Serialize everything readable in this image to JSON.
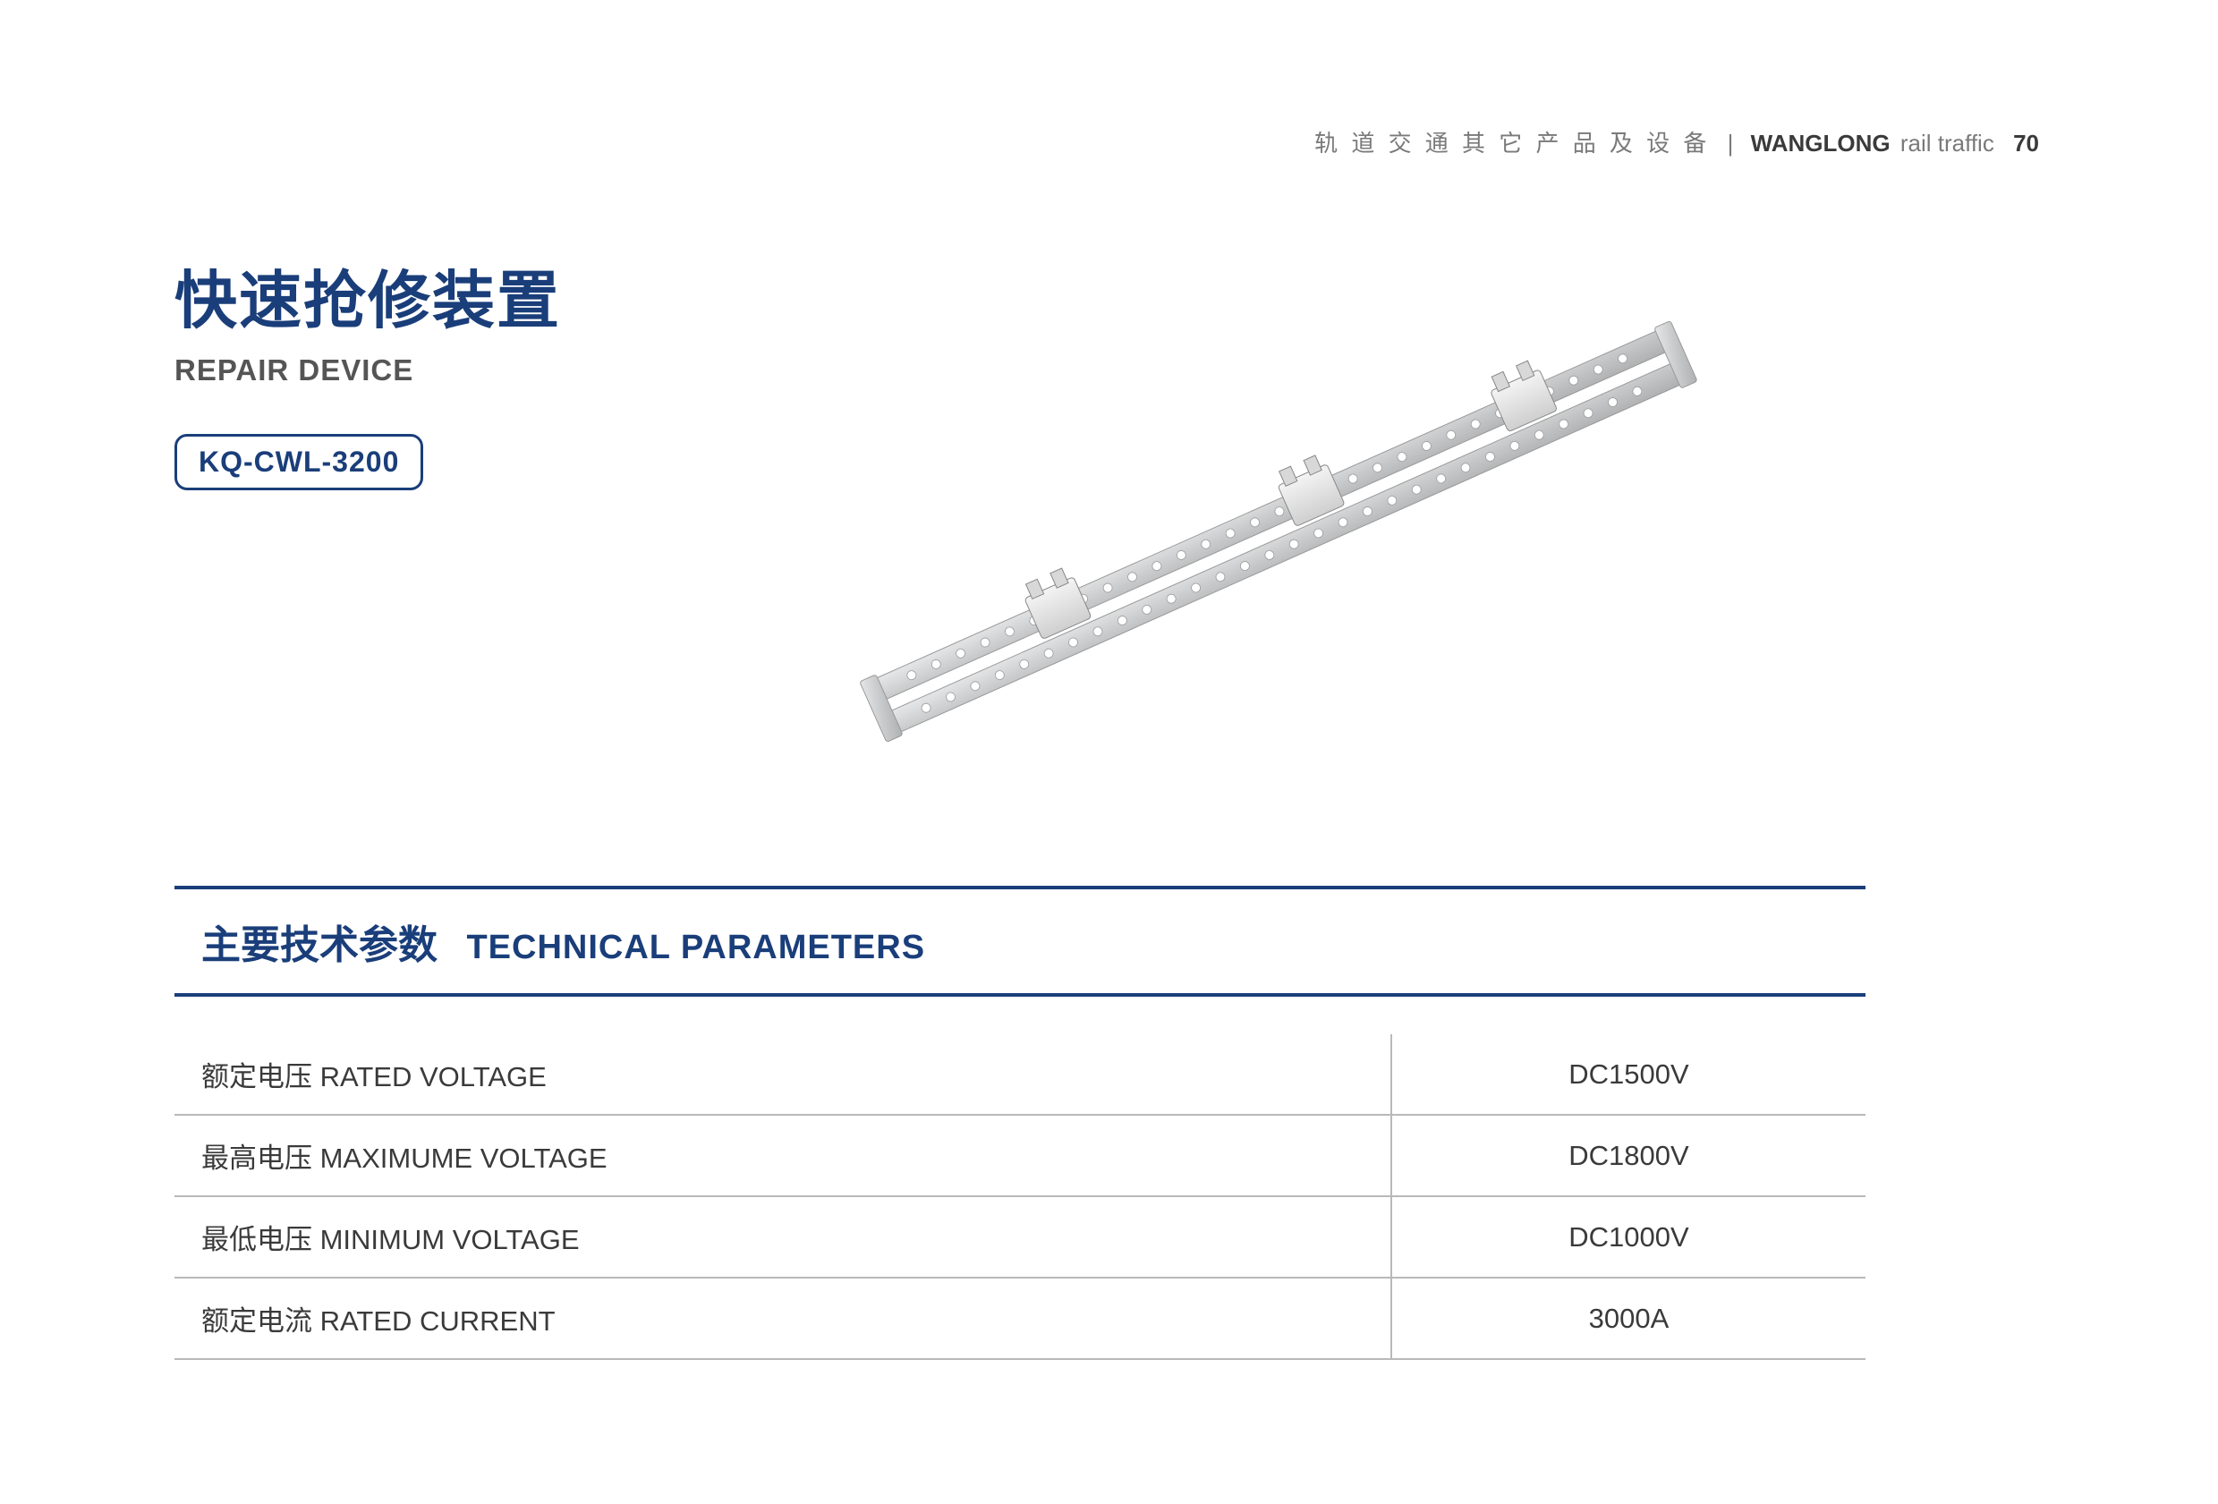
{
  "header": {
    "category_cn": "轨 道 交 通 其 它 产 品 及 设 备",
    "brand_bold": "WANGLONG",
    "brand_light": "rail traffic",
    "page_number": "70"
  },
  "title": {
    "cn": "快速抢修装置",
    "en": "REPAIR DEVICE",
    "model": "KQ-CWL-3200"
  },
  "colors": {
    "brand_blue": "#1a3e7a",
    "text_gray": "#3a3a3a",
    "light_gray": "#7a7a7a",
    "border_gray": "#b9b9b9",
    "background": "#ffffff"
  },
  "product_image": {
    "description": "metallic rail repair device with perforated parallel bars and clamp blocks",
    "bar_color": "#c8cacb",
    "clamp_color": "#e8e8e8",
    "hole_color": "#ffffff"
  },
  "params": {
    "heading_cn": "主要技术参数",
    "heading_en": "TECHNICAL PARAMETERS",
    "rows": [
      {
        "label": "额定电压 RATED VOLTAGE",
        "value": "DC1500V"
      },
      {
        "label": "最高电压 MAXIMUME VOLTAGE",
        "value": "DC1800V"
      },
      {
        "label": "最低电压 MINIMUM VOLTAGE",
        "value": "DC1000V"
      },
      {
        "label": "额定电流 RATED CURRENT",
        "value": "3000A"
      }
    ]
  }
}
